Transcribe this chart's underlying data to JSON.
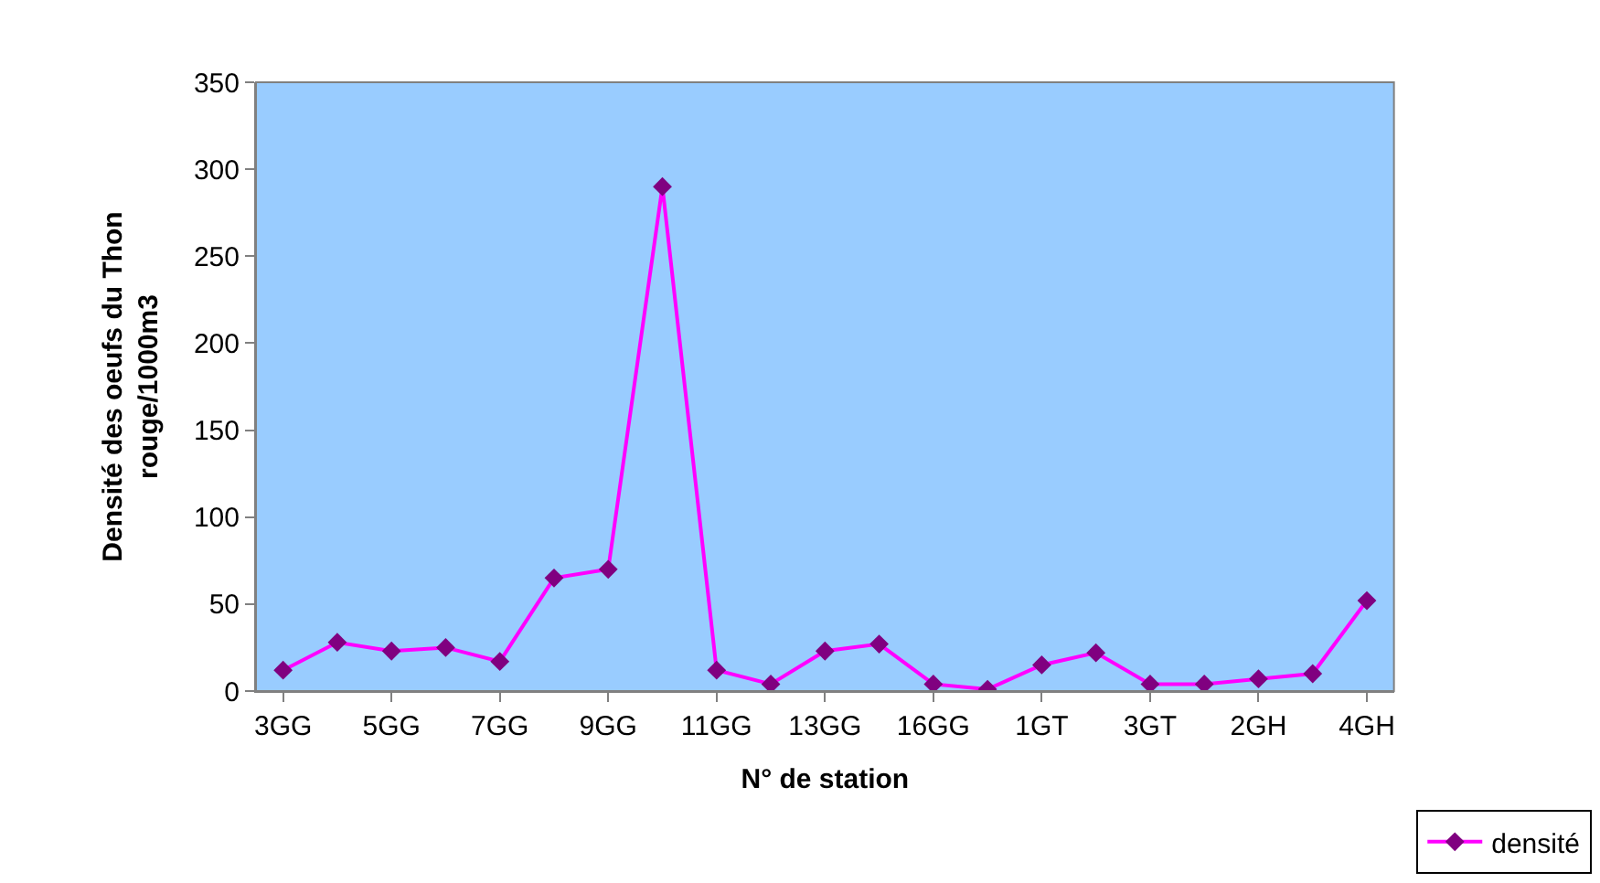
{
  "chart_data": {
    "type": "line",
    "xlabel": "N° de station",
    "ylabel": "Densité des oeufs du Thon rouge/1000m3",
    "categories": [
      "3GG",
      null,
      "5GG",
      null,
      "7GG",
      null,
      "9GG",
      null,
      "11GG",
      null,
      "13GG",
      null,
      "16GG",
      null,
      "1GT",
      null,
      "3GT",
      null,
      "2GH",
      null,
      "4GH"
    ],
    "series": [
      {
        "name": "densité",
        "color": "#ff00ff",
        "values": [
          12,
          28,
          23,
          25,
          17,
          65,
          70,
          290,
          12,
          4,
          23,
          27,
          4,
          1,
          15,
          22,
          4,
          4,
          7,
          10,
          52
        ]
      }
    ],
    "ylim": [
      0,
      350
    ],
    "yticks": [
      0,
      50,
      100,
      150,
      200,
      250,
      300,
      350
    ],
    "marker": "diamond",
    "legend": "bottom right",
    "grid": false
  }
}
